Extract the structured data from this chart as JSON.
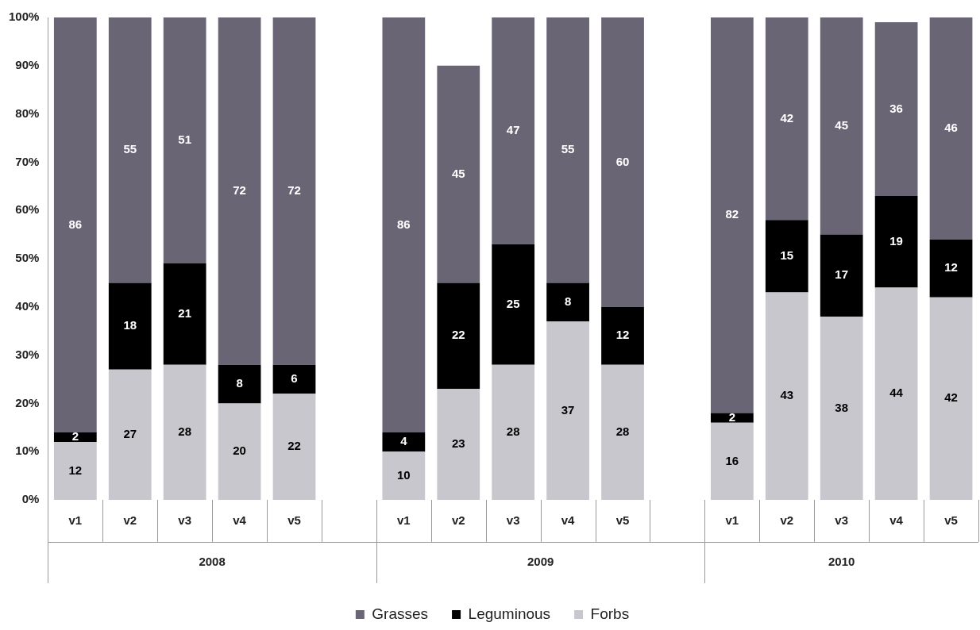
{
  "chart_data": {
    "type": "bar",
    "stacked": true,
    "categories": [
      "v1",
      "v2",
      "v3",
      "v4",
      "v5",
      null,
      "v1",
      "v2",
      "v3",
      "v4",
      "v5",
      null,
      "v1",
      "v2",
      "v3",
      "v4",
      "v5"
    ],
    "series": [
      {
        "name": "Forbs",
        "color": "#c8c7cd",
        "values": [
          12,
          27,
          28,
          20,
          22,
          null,
          10,
          23,
          28,
          37,
          28,
          null,
          16,
          43,
          38,
          44,
          42
        ],
        "value_labels": [
          "12",
          "27",
          "28",
          "20",
          "22",
          null,
          "10",
          "23",
          "28",
          "37",
          "28",
          null,
          "16",
          "43",
          "38",
          "44",
          "42"
        ]
      },
      {
        "name": "Leguminous",
        "color": "#000000",
        "values": [
          2,
          18,
          21,
          8,
          6,
          null,
          4,
          22,
          25,
          8,
          12,
          null,
          2,
          15,
          17,
          19,
          12
        ],
        "value_labels": [
          "2",
          "18",
          "21",
          "8",
          "6",
          null,
          "4",
          "22",
          "25",
          "8",
          "12",
          null,
          "2",
          "15",
          "17",
          "19",
          "12"
        ]
      },
      {
        "name": "Grasses",
        "color": "#6a6575",
        "values": [
          86,
          55,
          51,
          72,
          72,
          null,
          86,
          45,
          47,
          55,
          60,
          null,
          82,
          42,
          45,
          36,
          46
        ],
        "value_labels": [
          "86",
          "55",
          "51",
          "72",
          "72",
          null,
          "86",
          "45",
          "47",
          "55",
          "60",
          null,
          "82",
          "42",
          "45",
          "36",
          "46"
        ]
      }
    ],
    "ylim": [
      0,
      100
    ],
    "yticks": [
      {
        "value": 0,
        "label": "0%"
      },
      {
        "value": 10,
        "label": "10%"
      },
      {
        "value": 20,
        "label": "20%"
      },
      {
        "value": 30,
        "label": "30%"
      },
      {
        "value": 40,
        "label": "40%"
      },
      {
        "value": 50,
        "label": "50%"
      },
      {
        "value": 60,
        "label": "60%"
      },
      {
        "value": 70,
        "label": "70%"
      },
      {
        "value": 80,
        "label": "80%"
      },
      {
        "value": 90,
        "label": "90%"
      },
      {
        "value": 100,
        "label": "100%"
      }
    ],
    "annotations": [
      "2008",
      "2009",
      "2010"
    ],
    "grid": false,
    "legend": "bottom"
  }
}
